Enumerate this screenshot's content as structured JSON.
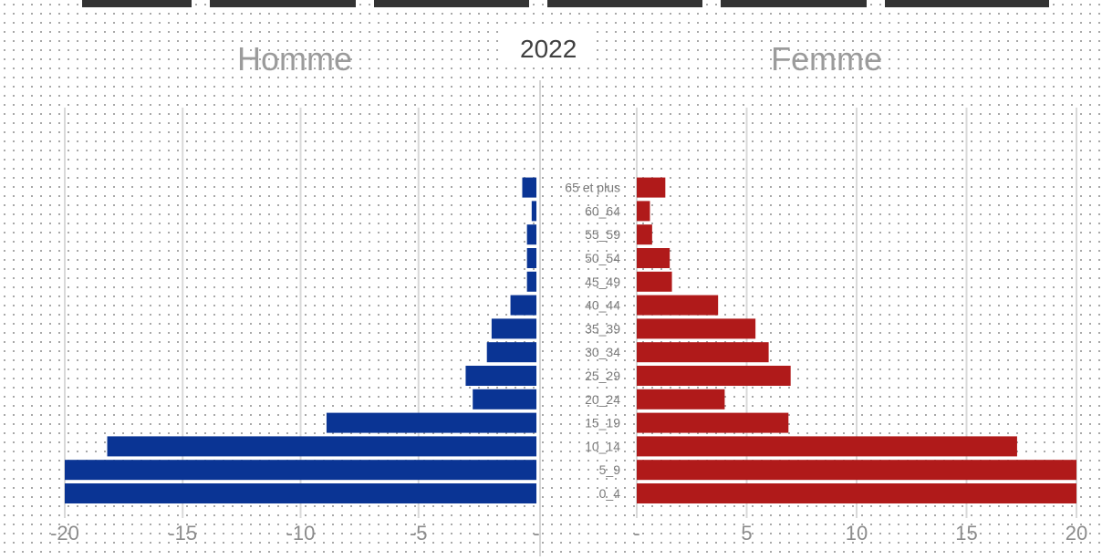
{
  "chart_data": [
    {
      "type": "bar",
      "orientation": "horizontal",
      "title": "Homme",
      "categories": [
        "0_4",
        "5_9",
        "10_14",
        "15_19",
        "20_24",
        "25_29",
        "30_34",
        "35_39",
        "40_44",
        "45_49",
        "50_54",
        "55_59",
        "60_64",
        "65 et plus"
      ],
      "values": [
        -20.0,
        -20.0,
        -18.2,
        -8.9,
        -2.7,
        -3.0,
        -2.1,
        -1.9,
        -1.1,
        -0.4,
        -0.4,
        -0.4,
        -0.2,
        -0.6
      ],
      "xlim": [
        -20,
        0
      ],
      "xticks": [
        "-20",
        "-15",
        "-10",
        "-5",
        "-"
      ],
      "color": "#0a3494",
      "grid": true
    },
    {
      "type": "bar",
      "orientation": "horizontal",
      "title": "Femme",
      "categories": [
        "0_4",
        "5_9",
        "10_14",
        "15_19",
        "20_24",
        "25_29",
        "30_34",
        "35_39",
        "40_44",
        "45_49",
        "50_54",
        "55_59",
        "60_64",
        "65 et plus"
      ],
      "values": [
        20.0,
        20.0,
        17.3,
        6.9,
        4.0,
        7.0,
        6.0,
        5.4,
        3.7,
        1.6,
        1.5,
        0.7,
        0.6,
        1.3
      ],
      "xlim": [
        0,
        20
      ],
      "xticks": [
        "-",
        "5",
        "10",
        "15",
        "20"
      ],
      "color": "#b01a1a",
      "grid": true
    }
  ],
  "header": {
    "year": "2022",
    "left_title": "Homme",
    "right_title": "Femme"
  }
}
